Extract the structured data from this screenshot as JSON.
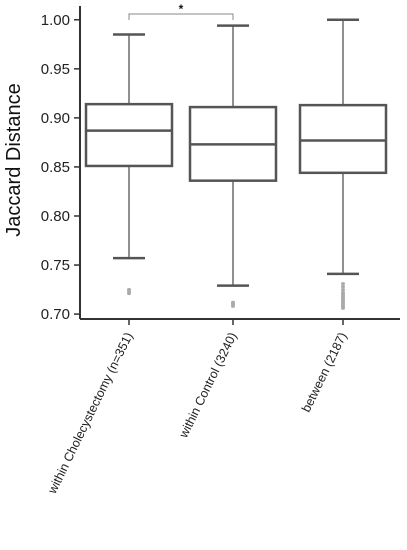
{
  "chart_data": {
    "type": "box",
    "ylabel": "Jaccard Distance",
    "xlabel": "",
    "ylim": [
      0.695,
      1.012
    ],
    "yticks": [
      0.7,
      0.75,
      0.8,
      0.85,
      0.9,
      0.95,
      1.0
    ],
    "ytick_labels": [
      "0.70",
      "0.75",
      "0.80",
      "0.85",
      "0.90",
      "0.95",
      "1.00"
    ],
    "grid": false,
    "categories": [
      "within Cholecystectomy (n=351)",
      "within Control (3240)",
      "between (2187)"
    ],
    "boxes": [
      {
        "whisker_low": 0.757,
        "q1": 0.851,
        "median": 0.887,
        "q3": 0.914,
        "whisker_high": 0.985,
        "outliers": [
          0.721,
          0.723,
          0.725
        ]
      },
      {
        "whisker_low": 0.729,
        "q1": 0.836,
        "median": 0.873,
        "q3": 0.911,
        "whisker_high": 0.994,
        "outliers": [
          0.708,
          0.71,
          0.712
        ]
      },
      {
        "whisker_low": 0.741,
        "q1": 0.844,
        "median": 0.877,
        "q3": 0.913,
        "whisker_high": 1.0,
        "outliers": [
          0.706,
          0.708,
          0.71,
          0.712,
          0.714,
          0.716,
          0.718,
          0.72,
          0.722,
          0.725,
          0.728,
          0.731
        ]
      }
    ],
    "annotations": [
      {
        "text": "*",
        "from": 0,
        "to": 1
      }
    ],
    "colors": {
      "box": "#555555",
      "outlier": "#aaaaaa",
      "axis": "#333333"
    }
  }
}
